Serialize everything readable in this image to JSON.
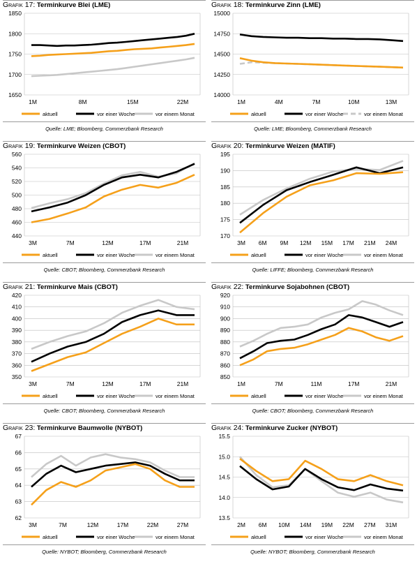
{
  "legend_labels": [
    "aktuell",
    "vor einer Woche",
    "vor einem Monat"
  ],
  "colors": {
    "aktuell": "#f5a01a",
    "vor einer Woche": "#000000",
    "vor einem Monat": "#c8c8c8"
  },
  "chart_data": [
    {
      "prefix": "Grafik 17:",
      "title": "Terminkurve Blei (LME)",
      "type": "line",
      "source": "Quelle: LME; Bloomberg, Commerzbank Research",
      "xticks": [
        "1M",
        "8M",
        "15M",
        "22M"
      ],
      "ylim": [
        1650,
        1850
      ],
      "yticks": [
        1650,
        1700,
        1750,
        1800,
        1850
      ],
      "grid": true,
      "legend_dash_monthly": false,
      "series": [
        {
          "name": "aktuell",
          "values": [
            1745,
            1746,
            1748,
            1749,
            1750,
            1751,
            1752,
            1753,
            1755,
            1757,
            1758,
            1760,
            1762,
            1763,
            1764,
            1766,
            1768,
            1770,
            1772,
            1775
          ]
        },
        {
          "name": "vor einer Woche",
          "values": [
            1772,
            1772,
            1771,
            1770,
            1771,
            1771,
            1772,
            1773,
            1775,
            1777,
            1778,
            1780,
            1782,
            1784,
            1786,
            1788,
            1790,
            1792,
            1795,
            1800
          ]
        },
        {
          "name": "vor einem Monat",
          "values": [
            1696,
            1697,
            1698,
            1699,
            1701,
            1703,
            1705,
            1707,
            1709,
            1711,
            1713,
            1716,
            1719,
            1722,
            1725,
            1728,
            1731,
            1734,
            1737,
            1741
          ]
        }
      ]
    },
    {
      "prefix": "Grafik 18:",
      "title": "Terminkurve Zinn (LME)",
      "type": "line",
      "source": "Quelle: LME; Bloomberg, Commerzbank Research",
      "xticks": [
        "1M",
        "4M",
        "7M",
        "10M",
        "13M"
      ],
      "ylim": [
        14000,
        15000
      ],
      "yticks": [
        14000,
        14250,
        14500,
        14750,
        15000
      ],
      "grid": true,
      "legend_dash_monthly": true,
      "series": [
        {
          "name": "aktuell",
          "values": [
            14450,
            14420,
            14400,
            14390,
            14385,
            14380,
            14375,
            14370,
            14365,
            14360,
            14355,
            14350,
            14345,
            14340,
            14335
          ]
        },
        {
          "name": "vor einer Woche",
          "values": [
            14740,
            14720,
            14710,
            14705,
            14700,
            14700,
            14695,
            14695,
            14690,
            14690,
            14685,
            14685,
            14680,
            14670,
            14660
          ]
        },
        {
          "name": "vor einem Monat",
          "values": [
            14380,
            14400,
            14395,
            14390,
            14385,
            14380,
            14375,
            14370,
            14365,
            14360,
            14355,
            14350,
            14345,
            14340,
            14335
          ]
        }
      ]
    },
    {
      "prefix": "Grafik 19:",
      "title": "Terminkurve Weizen (CBOT)",
      "type": "line",
      "source": "Quelle: CBOT; Bloomberg, Commerzbank Research",
      "xticks": [
        "3M",
        "7M",
        "12M",
        "17M",
        "21M"
      ],
      "ylim": [
        440,
        560
      ],
      "yticks": [
        440,
        460,
        480,
        500,
        520,
        540,
        560
      ],
      "grid": true,
      "legend_dash_monthly": false,
      "series": [
        {
          "name": "aktuell",
          "values": [
            460,
            465,
            473,
            482,
            498,
            508,
            515,
            511,
            518,
            530
          ]
        },
        {
          "name": "vor einer Woche",
          "values": [
            476,
            482,
            489,
            500,
            515,
            526,
            530,
            526,
            534,
            546
          ]
        },
        {
          "name": "vor einem Monat",
          "values": [
            481,
            488,
            494,
            503,
            517,
            529,
            534,
            527,
            532,
            547
          ]
        }
      ]
    },
    {
      "prefix": "Grafik 20:",
      "title": "Terminkurve Weizen (MATIF)",
      "type": "line",
      "source": "Quelle: LIFFE; Bloomberg, Commerzbank Research",
      "xticks": [
        "3M",
        "6M",
        "9M",
        "12M",
        "15M",
        "17M",
        "21M",
        "24M"
      ],
      "ylim": [
        170,
        195
      ],
      "yticks": [
        170,
        175,
        180,
        185,
        190,
        195
      ],
      "grid": true,
      "legend_dash_monthly": false,
      "series": [
        {
          "name": "aktuell",
          "values": [
            171,
            177,
            182,
            185.5,
            187,
            189.2,
            189,
            189.5
          ]
        },
        {
          "name": "vor einer Woche",
          "values": [
            174,
            179.5,
            184,
            186.5,
            188.7,
            191,
            189.2,
            191
          ]
        },
        {
          "name": "vor einem Monat",
          "values": [
            176.5,
            181,
            184.5,
            187.5,
            189.7,
            190.5,
            190.2,
            193
          ]
        }
      ]
    },
    {
      "prefix": "Grafik 21:",
      "title": "Terminkurve Mais (CBOT)",
      "type": "line",
      "source": "Quelle: CBOT; Bloomberg, Commerzbank Research",
      "xticks": [
        "3M",
        "7M",
        "12M",
        "17M",
        "21M"
      ],
      "ylim": [
        350,
        420
      ],
      "yticks": [
        350,
        360,
        370,
        380,
        390,
        400,
        410,
        420
      ],
      "grid": true,
      "legend_dash_monthly": false,
      "series": [
        {
          "name": "aktuell",
          "values": [
            355,
            361,
            367,
            371,
            379,
            387,
            393,
            400,
            395,
            395
          ]
        },
        {
          "name": "vor einer Woche",
          "values": [
            363,
            370,
            376,
            380,
            387,
            397,
            403,
            407,
            403,
            403
          ]
        },
        {
          "name": "vor einem Monat",
          "values": [
            374,
            380,
            385,
            389,
            396,
            405,
            411,
            416,
            410,
            408
          ]
        }
      ]
    },
    {
      "prefix": "Grafik 22:",
      "title": "Terminkurve Sojabohnen (CBOT)",
      "type": "line",
      "source": "Quelle: CBOT; Bloomberg, Commerzbank Research",
      "xticks": [
        "1M",
        "7M",
        "11M",
        "17M",
        "21M"
      ],
      "ylim": [
        850,
        920
      ],
      "yticks": [
        850,
        860,
        870,
        880,
        890,
        900,
        910,
        920
      ],
      "grid": true,
      "legend_dash_monthly": false,
      "series": [
        {
          "name": "aktuell",
          "values": [
            860,
            865,
            872,
            874,
            875,
            878,
            882,
            886,
            892,
            889,
            884,
            881,
            885
          ]
        },
        {
          "name": "vor einer Woche",
          "values": [
            866,
            872,
            879,
            881,
            882,
            886,
            891,
            895,
            903,
            901,
            897,
            893,
            897
          ]
        },
        {
          "name": "vor einem Monat",
          "values": [
            876,
            881,
            887,
            892,
            893,
            895,
            901,
            905,
            908,
            915,
            912,
            907,
            903
          ]
        }
      ]
    },
    {
      "prefix": "Grafik 23:",
      "title": "Terminkurve Baumwolle (NYBOT)",
      "type": "line",
      "source": "Quelle: NYBOT; Bloomberg, Commerzbank Research",
      "xticks": [
        "3M",
        "7M",
        "12M",
        "17M",
        "22M",
        "27M"
      ],
      "ylim": [
        62,
        67
      ],
      "yticks": [
        62,
        63,
        64,
        65,
        66,
        67
      ],
      "grid": true,
      "legend_dash_monthly": false,
      "series": [
        {
          "name": "aktuell",
          "values": [
            62.8,
            63.7,
            64.2,
            63.9,
            64.3,
            64.9,
            65.1,
            65.3,
            65.0,
            64.3,
            63.9,
            63.9
          ]
        },
        {
          "name": "vor einer Woche",
          "values": [
            63.9,
            64.7,
            65.2,
            64.8,
            65.0,
            65.2,
            65.3,
            65.4,
            65.2,
            64.7,
            64.3,
            64.3
          ]
        },
        {
          "name": "vor einem Monat",
          "values": [
            64.5,
            65.3,
            65.8,
            65.2,
            65.7,
            65.9,
            65.7,
            65.6,
            65.4,
            64.9,
            64.5,
            64.5
          ]
        }
      ]
    },
    {
      "prefix": "Grafik 24:",
      "title": "Terminkurve Zucker (NYBOT)",
      "type": "line",
      "source": "Quelle: NYBOT; Bloomberg, Commerzbank Research",
      "xticks": [
        "2M",
        "6M",
        "10M",
        "14M",
        "19M",
        "22M",
        "27M",
        "31M"
      ],
      "ylim": [
        13.5,
        15.5
      ],
      "yticks": [
        13.5,
        14.0,
        14.5,
        15.0,
        15.5
      ],
      "grid": true,
      "legend_dash_monthly": false,
      "series": [
        {
          "name": "aktuell",
          "values": [
            14.95,
            14.65,
            14.4,
            14.45,
            14.9,
            14.7,
            14.45,
            14.4,
            14.55,
            14.4,
            14.3
          ]
        },
        {
          "name": "vor einer Woche",
          "values": [
            14.77,
            14.45,
            14.2,
            14.27,
            14.7,
            14.45,
            14.25,
            14.18,
            14.32,
            14.22,
            14.17
          ]
        },
        {
          "name": "vor einem Monat",
          "values": [
            15.0,
            14.55,
            14.25,
            14.3,
            14.7,
            14.4,
            14.12,
            14.02,
            14.12,
            13.95,
            13.88
          ]
        }
      ]
    }
  ]
}
